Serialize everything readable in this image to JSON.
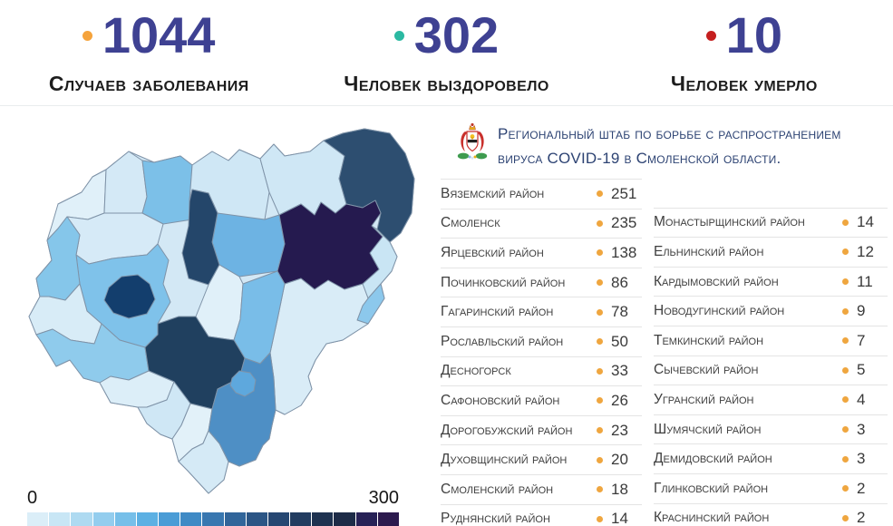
{
  "stats": [
    {
      "value": "1044",
      "label": "Случаев заболевания",
      "dot_color": "#F5A33C"
    },
    {
      "value": "302",
      "label": "Человек выздоровело",
      "dot_color": "#2BB9A2"
    },
    {
      "value": "10",
      "label": "Человек умерло",
      "dot_color": "#C51F1F"
    }
  ],
  "hq": {
    "title_line1": "Региональный штаб по борьбе с распространением",
    "title_line2": "вируса COVID-19 в Смоленской области.",
    "emblem": "smolensk-oblast-coat-of-arms"
  },
  "map": {
    "legend": {
      "min": "0",
      "max": "300",
      "colors": [
        "#dbeef8",
        "#c8e6f5",
        "#aedaf1",
        "#93cdee",
        "#76bfe9",
        "#5cb0e3",
        "#4a9cd6",
        "#3f8ac5",
        "#3877b0",
        "#31659a",
        "#2b5585",
        "#264772",
        "#223c60",
        "#1e3250",
        "#1d2b47",
        "#272156",
        "#2c1a4e"
      ]
    },
    "region_keys": [
      "nw-1",
      "nw-2",
      "dukhovshchinsky",
      "north-1",
      "yartsevsky",
      "safonovsky",
      "vyazemsky",
      "gagarinsky",
      "north-2",
      "east-1",
      "temkinsky",
      "southeast-light",
      "center-1",
      "dorogobuzhsky",
      "pochinkovsky",
      "center-2",
      "smolensky",
      "smolensk-city",
      "rudnyansky",
      "west-1",
      "monastyrshchinsky",
      "southwest-1",
      "south-1",
      "south-2",
      "south-tip",
      "roslavlsky",
      "desnogorsk"
    ],
    "region_fills": [
      "#e0f0f9",
      "#d4e9f6",
      "#7cc0e8",
      "#cfe7f5",
      "#24466a",
      "#6db3e3",
      "#251a4f",
      "#2d4e70",
      "#cfe7f5",
      "#c9e5f4",
      "#8cc8ec",
      "#d9ecf7",
      "#e0f0f9",
      "#79bde8",
      "#20405f",
      "#d6eaf7",
      "#7fc2ea",
      "#133e6d",
      "#85c6ea",
      "#d8ecf7",
      "#8fcbec",
      "#dceef8",
      "#cfe7f5",
      "#e2f1f9",
      "#d5eaf6",
      "#4e8fc5",
      "#5ea8dd"
    ]
  },
  "districts": {
    "left": [
      {
        "name": "Вяземский район",
        "value": "251"
      },
      {
        "name": "Смоленск",
        "value": "235"
      },
      {
        "name": "Ярцевский район",
        "value": "138"
      },
      {
        "name": "Починковский район",
        "value": "86"
      },
      {
        "name": "Гагаринский район",
        "value": "78"
      },
      {
        "name": "Рославльский район",
        "value": "50"
      },
      {
        "name": "Десногорск",
        "value": "33"
      },
      {
        "name": "Сафоновский район",
        "value": "26"
      },
      {
        "name": "Дорогобужский район",
        "value": "23"
      },
      {
        "name": "Духовщинский район",
        "value": "20"
      },
      {
        "name": "Смоленский район",
        "value": "18"
      },
      {
        "name": "Руднянский район",
        "value": "14"
      }
    ],
    "right": [
      {
        "name": "Монастырщинский район",
        "value": "14"
      },
      {
        "name": "Ельнинский район",
        "value": "12"
      },
      {
        "name": "Кардымовский район",
        "value": "11"
      },
      {
        "name": "Новодугинский район",
        "value": "9"
      },
      {
        "name": "Темкинский район",
        "value": "7"
      },
      {
        "name": "Сычевский район",
        "value": "5"
      },
      {
        "name": "Угранский район",
        "value": "4"
      },
      {
        "name": "Шумячский район",
        "value": "3"
      },
      {
        "name": "Демидовский район",
        "value": "3"
      },
      {
        "name": "Глинковский район",
        "value": "2"
      },
      {
        "name": "Краснинский район",
        "value": "2"
      }
    ]
  },
  "accent": {
    "bullet": "#EFA63F",
    "number_color": "#3E4192",
    "title_color": "#2D4373"
  },
  "chart_data": {
    "type": "heatmap",
    "title": "Региональный штаб по борьбе с распространением вируса COVID-19 в Смоленской области.",
    "subtitle": "Choropleth map of COVID-19 cases by district of Smolensk Oblast",
    "legend": {
      "min": 0,
      "max": 300,
      "position": "bottom-left"
    },
    "categories": [
      "Вяземский район",
      "Смоленск",
      "Ярцевский район",
      "Починковский район",
      "Гагаринский район",
      "Рославльский район",
      "Десногорск",
      "Сафоновский район",
      "Дорогобужский район",
      "Духовщинский район",
      "Смоленский район",
      "Руднянский район",
      "Монастырщинский район",
      "Ельнинский район",
      "Кардымовский район",
      "Новодугинский район",
      "Темкинский район",
      "Сычевский район",
      "Угранский район",
      "Шумячский район",
      "Демидовский район",
      "Глинковский район",
      "Краснинский район"
    ],
    "values": [
      251,
      235,
      138,
      86,
      78,
      50,
      33,
      26,
      23,
      20,
      18,
      14,
      14,
      12,
      11,
      9,
      7,
      5,
      4,
      3,
      3,
      2,
      2
    ],
    "summary": {
      "cases": 1044,
      "recovered": 302,
      "deaths": 10
    }
  }
}
